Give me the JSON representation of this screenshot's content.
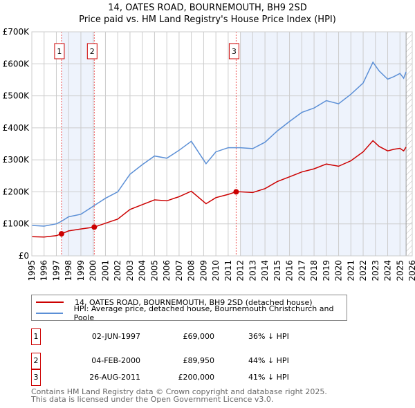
{
  "chart_data": {
    "type": "line",
    "title": "14, OATES ROAD, BOURNEMOUTH, BH9 2SD",
    "subtitle": "Price paid vs. HM Land Registry's House Price Index (HPI)",
    "xlabel": "",
    "ylabel": "",
    "xlim": [
      1995,
      2026
    ],
    "ylim": [
      0,
      700000
    ],
    "y_ticks": [
      "£0",
      "£100K",
      "£200K",
      "£300K",
      "£400K",
      "£500K",
      "£600K",
      "£700K"
    ],
    "x_ticks": [
      "1995",
      "1996",
      "1997",
      "1998",
      "1999",
      "2000",
      "2001",
      "2002",
      "2003",
      "2004",
      "2005",
      "2006",
      "2007",
      "2008",
      "2009",
      "2010",
      "2011",
      "2012",
      "2013",
      "2014",
      "2015",
      "2016",
      "2017",
      "2018",
      "2019",
      "2020",
      "2021",
      "2022",
      "2023",
      "2024",
      "2025",
      "2026"
    ],
    "grid": true,
    "series": [
      {
        "name": "14, OATES ROAD, BOURNEMOUTH, BH9 2SD (detached house)",
        "color": "#cc0000",
        "x": [
          1995,
          1996,
          1997,
          1997.42,
          1998,
          1999,
          2000.09,
          2001,
          2002,
          2003,
          2004,
          2005,
          2006,
          2007,
          2008,
          2009.2,
          2010,
          2011,
          2011.65,
          2012,
          2013,
          2014,
          2015,
          2016,
          2017,
          2018,
          2019,
          2020,
          2021,
          2022,
          2022.8,
          2023.3,
          2024,
          2024.5,
          2025,
          2025.3,
          2025.5
        ],
        "y": [
          60000,
          59000,
          63000,
          69000,
          78000,
          84000,
          89950,
          102000,
          115000,
          145000,
          160000,
          175000,
          172000,
          185000,
          202000,
          163000,
          182000,
          192000,
          200000,
          200000,
          198000,
          210000,
          232000,
          247000,
          262000,
          272000,
          287000,
          280000,
          297000,
          325000,
          360000,
          342000,
          328000,
          333000,
          336000,
          328000,
          340000
        ]
      },
      {
        "name": "HPI: Average price, detached house, Bournemouth Christchurch and Poole",
        "color": "#5b8fd6",
        "x": [
          1995,
          1996,
          1997,
          1997.42,
          1998,
          1999,
          2000,
          2001,
          2002,
          2003,
          2004,
          2005,
          2006,
          2007,
          2008,
          2009.2,
          2010,
          2011,
          2012,
          2013,
          2014,
          2015,
          2016,
          2017,
          2018,
          2019,
          2020,
          2021,
          2022,
          2022.8,
          2023.3,
          2024,
          2024.5,
          2025,
          2025.3,
          2025.5
        ],
        "y": [
          95000,
          93000,
          100000,
          108000,
          122000,
          130000,
          155000,
          180000,
          200000,
          255000,
          285000,
          312000,
          305000,
          330000,
          358000,
          288000,
          325000,
          338000,
          338000,
          335000,
          355000,
          390000,
          420000,
          448000,
          462000,
          485000,
          475000,
          505000,
          540000,
          605000,
          578000,
          552000,
          560000,
          570000,
          555000,
          575000
        ]
      }
    ],
    "sales": [
      {
        "label": "1",
        "x": 1997.42,
        "date": "02-JUN-1997",
        "price": "£69,000",
        "value": 69000,
        "hpi": "36% ↓ HPI"
      },
      {
        "label": "2",
        "x": 2000.09,
        "date": "04-FEB-2000",
        "price": "£89,950",
        "value": 89950,
        "hpi": "44% ↓ HPI"
      },
      {
        "label": "3",
        "x": 2011.65,
        "date": "26-AUG-2011",
        "price": "£200,000",
        "value": 200000,
        "hpi": "41% ↓ HPI"
      }
    ],
    "shaded_ranges": [
      [
        1997.42,
        2000.09
      ],
      [
        2012,
        2025.5
      ]
    ],
    "hatched_from": 2025.5,
    "legend_placement": "below"
  },
  "footer": {
    "line1": "Contains HM Land Registry data © Crown copyright and database right 2025.",
    "line2": "This data is licensed under the Open Government Licence v3.0."
  }
}
